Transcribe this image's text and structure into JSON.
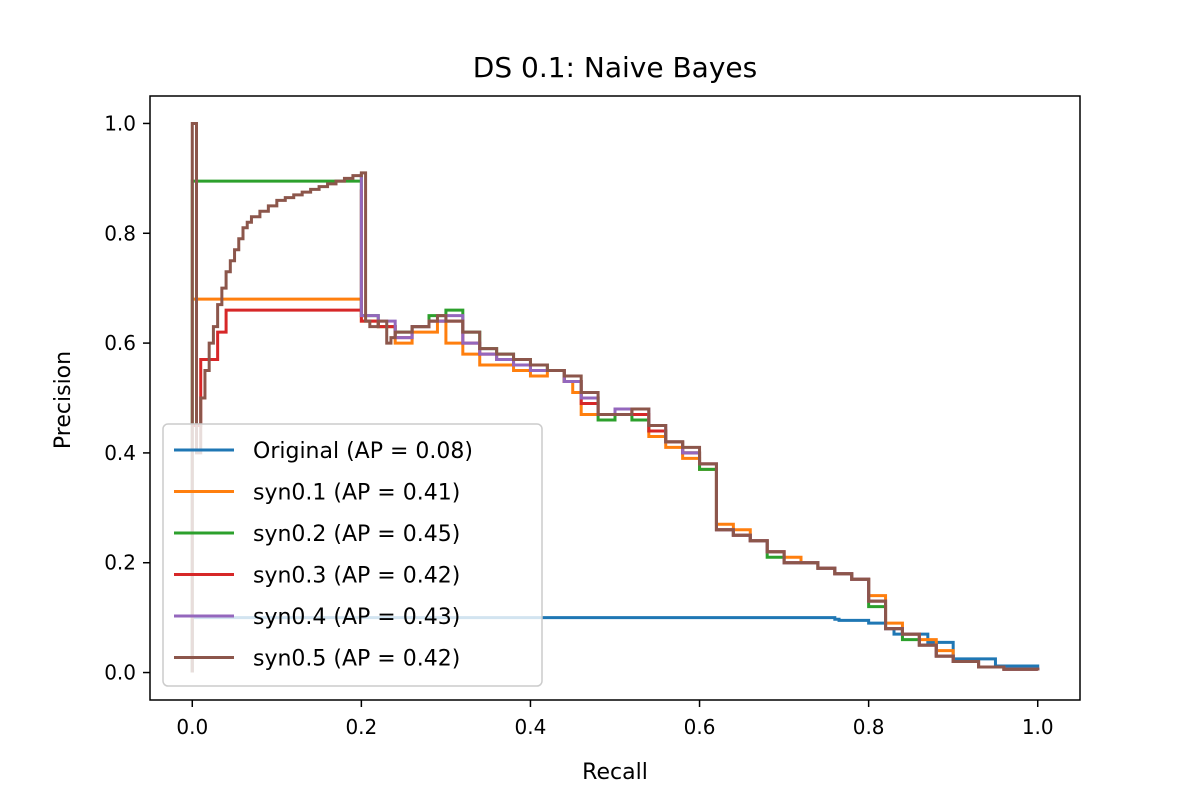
{
  "chart_data": {
    "type": "line",
    "title": "DS 0.1: Naive Bayes",
    "xlabel": "Recall",
    "ylabel": "Precision",
    "xlim": [
      -0.05,
      1.05
    ],
    "ylim": [
      -0.05,
      1.05
    ],
    "xticks": [
      "0.0",
      "0.2",
      "0.4",
      "0.6",
      "0.8",
      "1.0"
    ],
    "yticks": [
      "0.0",
      "0.2",
      "0.4",
      "0.6",
      "0.8",
      "1.0"
    ],
    "grid": false,
    "legend_position": "lower-left",
    "series": [
      {
        "name": "Original (AP = 0.08)",
        "color": "#1f77b4",
        "x": [
          0.0,
          0.0,
          0.004,
          0.004,
          0.25,
          0.5,
          0.72,
          0.76,
          0.765,
          0.8,
          0.82,
          0.83,
          0.87,
          0.9,
          0.95,
          1.0
        ],
        "y": [
          0.0,
          0.1,
          0.1,
          0.1,
          0.1,
          0.1,
          0.1,
          0.097,
          0.095,
          0.09,
          0.08,
          0.07,
          0.055,
          0.025,
          0.012,
          0.004
        ]
      },
      {
        "name": "syn0.1 (AP = 0.41)",
        "color": "#ff7f0e",
        "x": [
          0.0,
          0.2,
          0.2,
          0.22,
          0.24,
          0.26,
          0.29,
          0.3,
          0.32,
          0.34,
          0.36,
          0.38,
          0.4,
          0.42,
          0.44,
          0.45,
          0.46,
          0.47,
          0.5,
          0.52,
          0.54,
          0.56,
          0.58,
          0.6,
          0.62,
          0.62,
          0.64,
          0.66,
          0.68,
          0.7,
          0.72,
          0.74,
          0.76,
          0.78,
          0.8,
          0.82,
          0.84,
          0.86,
          0.88,
          0.9,
          0.93,
          0.96,
          1.0
        ],
        "y": [
          0.68,
          0.68,
          0.64,
          0.63,
          0.6,
          0.62,
          0.64,
          0.6,
          0.58,
          0.56,
          0.56,
          0.55,
          0.54,
          0.55,
          0.53,
          0.51,
          0.47,
          0.47,
          0.48,
          0.47,
          0.43,
          0.41,
          0.39,
          0.37,
          0.36,
          0.27,
          0.26,
          0.24,
          0.22,
          0.21,
          0.2,
          0.19,
          0.18,
          0.17,
          0.14,
          0.09,
          0.07,
          0.06,
          0.04,
          0.02,
          0.01,
          0.006,
          0.004
        ]
      },
      {
        "name": "syn0.2 (AP = 0.45)",
        "color": "#2ca02c",
        "x": [
          0.0,
          0.0,
          0.19,
          0.2,
          0.2,
          0.22,
          0.24,
          0.26,
          0.28,
          0.3,
          0.32,
          0.34,
          0.36,
          0.38,
          0.4,
          0.42,
          0.44,
          0.46,
          0.48,
          0.5,
          0.52,
          0.54,
          0.56,
          0.58,
          0.6,
          0.62,
          0.62,
          0.64,
          0.66,
          0.68,
          0.7,
          0.72,
          0.74,
          0.76,
          0.78,
          0.8,
          0.82,
          0.84,
          0.86,
          0.88,
          0.9,
          0.93,
          0.96,
          1.0
        ],
        "y": [
          0.0,
          0.895,
          0.895,
          0.905,
          0.65,
          0.63,
          0.62,
          0.63,
          0.65,
          0.66,
          0.62,
          0.59,
          0.58,
          0.57,
          0.56,
          0.55,
          0.53,
          0.5,
          0.46,
          0.47,
          0.46,
          0.44,
          0.42,
          0.4,
          0.37,
          0.36,
          0.26,
          0.25,
          0.24,
          0.21,
          0.2,
          0.2,
          0.19,
          0.18,
          0.17,
          0.12,
          0.08,
          0.06,
          0.05,
          0.03,
          0.02,
          0.01,
          0.006,
          0.004
        ]
      },
      {
        "name": "syn0.3 (AP = 0.42)",
        "color": "#d62728",
        "x": [
          0.0,
          0.01,
          0.02,
          0.03,
          0.04,
          0.2,
          0.2,
          0.22,
          0.24,
          0.26,
          0.28,
          0.3,
          0.32,
          0.34,
          0.36,
          0.38,
          0.4,
          0.42,
          0.44,
          0.46,
          0.48,
          0.5,
          0.52,
          0.54,
          0.56,
          0.58,
          0.6,
          0.62,
          0.62,
          0.64,
          0.66,
          0.68,
          0.7,
          0.72,
          0.74,
          0.76,
          0.78,
          0.8,
          0.82,
          0.84,
          0.86,
          0.88,
          0.9,
          0.93,
          0.96,
          1.0
        ],
        "y": [
          0.45,
          0.57,
          0.57,
          0.62,
          0.66,
          0.88,
          0.64,
          0.63,
          0.61,
          0.63,
          0.64,
          0.64,
          0.6,
          0.58,
          0.57,
          0.56,
          0.55,
          0.55,
          0.53,
          0.49,
          0.47,
          0.48,
          0.47,
          0.44,
          0.42,
          0.4,
          0.38,
          0.37,
          0.26,
          0.25,
          0.24,
          0.22,
          0.2,
          0.2,
          0.19,
          0.18,
          0.17,
          0.13,
          0.08,
          0.07,
          0.05,
          0.03,
          0.02,
          0.01,
          0.006,
          0.004
        ]
      },
      {
        "name": "syn0.4 (AP = 0.43)",
        "color": "#9467bd",
        "x": [
          0.2,
          0.2,
          0.22,
          0.24,
          0.26,
          0.28,
          0.3,
          0.32,
          0.34,
          0.36,
          0.38,
          0.4,
          0.42,
          0.44,
          0.46,
          0.48,
          0.5,
          0.52,
          0.54,
          0.56,
          0.58,
          0.6,
          0.62,
          0.62,
          0.64,
          0.66,
          0.68,
          0.7,
          0.72,
          0.74,
          0.76,
          0.78,
          0.8,
          0.82,
          0.84,
          0.86,
          0.88,
          0.9,
          0.93,
          0.96,
          1.0
        ],
        "y": [
          0.91,
          0.65,
          0.64,
          0.61,
          0.63,
          0.64,
          0.65,
          0.6,
          0.58,
          0.57,
          0.56,
          0.55,
          0.55,
          0.53,
          0.5,
          0.47,
          0.48,
          0.48,
          0.45,
          0.42,
          0.4,
          0.38,
          0.37,
          0.26,
          0.25,
          0.24,
          0.22,
          0.2,
          0.2,
          0.19,
          0.18,
          0.17,
          0.13,
          0.08,
          0.07,
          0.05,
          0.03,
          0.02,
          0.01,
          0.006,
          0.004
        ]
      },
      {
        "name": "syn0.5 (AP = 0.42)",
        "color": "#8c564b",
        "x": [
          0.0,
          0.0,
          0.005,
          0.01,
          0.015,
          0.02,
          0.025,
          0.03,
          0.035,
          0.04,
          0.045,
          0.05,
          0.055,
          0.06,
          0.065,
          0.07,
          0.08,
          0.09,
          0.1,
          0.11,
          0.12,
          0.13,
          0.14,
          0.15,
          0.16,
          0.17,
          0.18,
          0.19,
          0.2,
          0.205,
          0.21,
          0.22,
          0.23,
          0.235,
          0.24,
          0.26,
          0.28,
          0.29,
          0.3,
          0.32,
          0.34,
          0.36,
          0.38,
          0.4,
          0.42,
          0.44,
          0.46,
          0.48,
          0.5,
          0.52,
          0.54,
          0.56,
          0.58,
          0.6,
          0.62,
          0.62,
          0.64,
          0.66,
          0.68,
          0.7,
          0.72,
          0.74,
          0.76,
          0.78,
          0.8,
          0.82,
          0.84,
          0.86,
          0.88,
          0.9,
          0.93,
          0.96,
          1.0
        ],
        "y": [
          0.0,
          1.0,
          0.4,
          0.5,
          0.55,
          0.6,
          0.63,
          0.67,
          0.7,
          0.73,
          0.75,
          0.77,
          0.79,
          0.81,
          0.82,
          0.83,
          0.84,
          0.85,
          0.86,
          0.865,
          0.87,
          0.875,
          0.88,
          0.885,
          0.89,
          0.895,
          0.9,
          0.905,
          0.91,
          0.64,
          0.63,
          0.64,
          0.6,
          0.61,
          0.62,
          0.63,
          0.64,
          0.65,
          0.64,
          0.62,
          0.59,
          0.58,
          0.57,
          0.56,
          0.55,
          0.54,
          0.51,
          0.47,
          0.47,
          0.48,
          0.45,
          0.42,
          0.41,
          0.38,
          0.37,
          0.26,
          0.25,
          0.24,
          0.22,
          0.2,
          0.2,
          0.19,
          0.18,
          0.17,
          0.13,
          0.08,
          0.07,
          0.05,
          0.03,
          0.02,
          0.01,
          0.006,
          0.004
        ]
      }
    ]
  }
}
